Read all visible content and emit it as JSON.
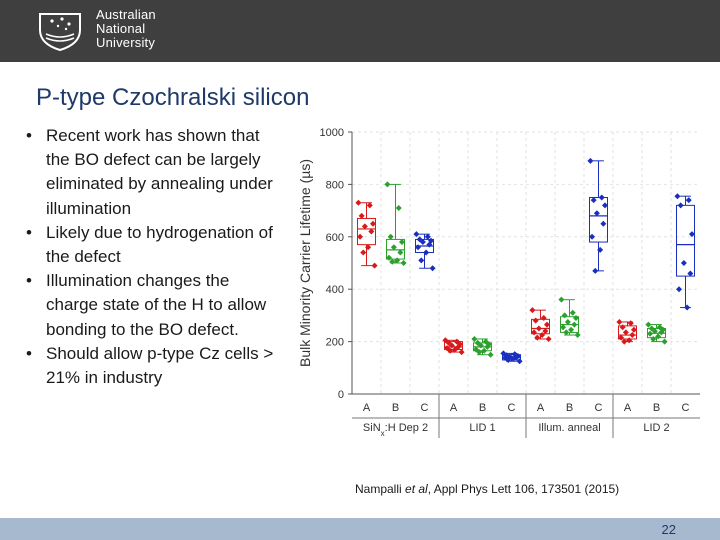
{
  "header": {
    "logo_lines": [
      "Australian",
      "National",
      "University"
    ],
    "logo_icon": "anu-crest-icon"
  },
  "slide": {
    "title": "P-type Czochralski silicon",
    "bullets": [
      "Recent work has shown that the BO defect can be largely eliminated by annealing under illumination",
      "Likely due to hydrogenation of the defect",
      "Illumination changes the charge state of the H to allow bonding to the BO defect.",
      "Should allow p-type Cz cells > 21% in industry"
    ],
    "citation": {
      "authors": "Nampalli ",
      "etal": "et al",
      "rest": ", Appl Phys Lett 106, 173501 (2015)"
    },
    "page_number": "22"
  },
  "chart_data": {
    "type": "scatter",
    "subtype": "box-plot",
    "title": "",
    "ylabel": "Bulk Minority Carrier Lifetime (µs)",
    "ylim": [
      0,
      1000
    ],
    "yticks": [
      0,
      200,
      400,
      600,
      800,
      1000
    ],
    "grid": true,
    "groups": [
      {
        "label": "SiNx:H Dep 2",
        "label_parts": [
          "SiN",
          "x",
          ":H Dep 2"
        ]
      },
      {
        "label": "LID 1"
      },
      {
        "label": "Illum. anneal"
      },
      {
        "label": "LID 2"
      }
    ],
    "categories": [
      "A",
      "B",
      "C",
      "A",
      "B",
      "C",
      "A",
      "B",
      "C",
      "A",
      "B",
      "C"
    ],
    "series_colors": {
      "A": "#d7191c",
      "B": "#2ca02c",
      "C": "#1a2fbf"
    },
    "boxes": [
      {
        "cat": "A",
        "q1": 570,
        "median": 630,
        "q3": 670,
        "min": 490,
        "max": 730,
        "points": [
          730,
          720,
          680,
          650,
          640,
          620,
          600,
          560,
          540,
          490
        ]
      },
      {
        "cat": "B",
        "q1": 515,
        "median": 550,
        "q3": 590,
        "min": 500,
        "max": 800,
        "points": [
          800,
          710,
          600,
          580,
          560,
          540,
          520,
          510,
          505,
          500
        ]
      },
      {
        "cat": "C",
        "q1": 540,
        "median": 565,
        "q3": 590,
        "min": 480,
        "max": 610,
        "points": [
          610,
          600,
          590,
          585,
          580,
          570,
          560,
          540,
          510,
          480
        ]
      },
      {
        "cat": "A",
        "q1": 170,
        "median": 180,
        "q3": 200,
        "min": 160,
        "max": 205,
        "points": [
          205,
          200,
          195,
          190,
          185,
          180,
          175,
          170,
          165,
          160
        ]
      },
      {
        "cat": "B",
        "q1": 165,
        "median": 180,
        "q3": 195,
        "min": 150,
        "max": 210,
        "points": [
          210,
          200,
          195,
          190,
          185,
          180,
          170,
          165,
          160,
          150
        ]
      },
      {
        "cat": "C",
        "q1": 130,
        "median": 140,
        "q3": 150,
        "min": 125,
        "max": 155,
        "points": [
          155,
          152,
          148,
          145,
          142,
          140,
          138,
          135,
          130,
          125
        ]
      },
      {
        "cat": "A",
        "q1": 230,
        "median": 250,
        "q3": 285,
        "min": 210,
        "max": 320,
        "points": [
          320,
          290,
          280,
          265,
          250,
          240,
          235,
          225,
          215,
          210
        ]
      },
      {
        "cat": "B",
        "q1": 235,
        "median": 265,
        "q3": 295,
        "min": 225,
        "max": 360,
        "points": [
          360,
          310,
          300,
          290,
          275,
          265,
          255,
          245,
          235,
          225
        ]
      },
      {
        "cat": "C",
        "q1": 580,
        "median": 680,
        "q3": 750,
        "min": 470,
        "max": 890,
        "points": [
          890,
          750,
          740,
          720,
          690,
          650,
          600,
          550,
          470
        ]
      },
      {
        "cat": "A",
        "q1": 210,
        "median": 225,
        "q3": 260,
        "min": 200,
        "max": 275,
        "points": [
          275,
          270,
          255,
          245,
          235,
          225,
          215,
          205,
          200
        ]
      },
      {
        "cat": "B",
        "q1": 215,
        "median": 232,
        "q3": 250,
        "min": 200,
        "max": 265,
        "points": [
          265,
          255,
          250,
          245,
          240,
          235,
          230,
          220,
          210,
          200
        ]
      },
      {
        "cat": "C",
        "q1": 450,
        "median": 570,
        "q3": 720,
        "min": 330,
        "max": 755,
        "points": [
          755,
          740,
          720,
          610,
          500,
          460,
          400,
          330
        ]
      }
    ]
  }
}
